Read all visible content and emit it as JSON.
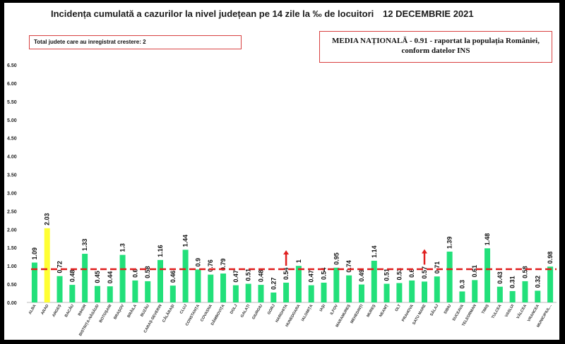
{
  "header": {
    "title": "Incidența cumulată a cazurilor la nivel județean pe 14 zile la ‰ de locuitori",
    "date": "12 DECEMBRIE 2021"
  },
  "info_left": "Total judete care au inregistrat crestere: 2",
  "info_right": "MEDIA NAȚIONALĂ - 0.91 - raportat la populația României, conform datelor INS",
  "chart_data": {
    "type": "bar",
    "title": "Incidența cumulată a cazurilor la nivel județean pe 14 zile la ‰ de locuitori",
    "xlabel": "",
    "ylabel": "",
    "ylim": [
      0,
      6.5
    ],
    "yticks": [
      0.0,
      0.5,
      1.0,
      1.5,
      2.0,
      2.5,
      3.0,
      3.5,
      4.0,
      4.5,
      5.0,
      5.5,
      6.0,
      6.5
    ],
    "ytick_labels": [
      "0.00",
      "0.50",
      "1.00",
      "1.50",
      "2.00",
      "2.50",
      "3.00",
      "3.50",
      "4.00",
      "4.50",
      "5.00",
      "5.50",
      "6.00",
      "6.50"
    ],
    "grid": false,
    "categories": [
      "ALBA",
      "ARAD",
      "ARGEȘ",
      "BACĂU",
      "BIHOR",
      "BISTRIȚA-NĂSĂUD",
      "BOTOȘANI",
      "BRAȘOV",
      "BRĂILA",
      "BUZĂU",
      "CARAȘ-SEVERIN",
      "CĂLĂRAȘI",
      "CLUJ",
      "CONSTANȚA",
      "COVASNA",
      "DÂMBOVIȚA",
      "DOLJ",
      "GALAȚI",
      "GIURGIU",
      "GORJ",
      "HARGHITA",
      "HUNEDOARA",
      "IALOMIȚA",
      "IAȘI",
      "ILFOV",
      "MARAMUREȘ",
      "MEHEDINȚI",
      "MUREȘ",
      "NEAMȚ",
      "OLT",
      "PRAHOVA",
      "SATU MARE",
      "SĂLAJ",
      "SIBIU",
      "SUCEAVA",
      "TELEORMAN",
      "TIMIȘ",
      "TULCEA",
      "VASLUI",
      "VÂLCEA",
      "VRANCEA",
      "MUNICIPIUL..."
    ],
    "values": [
      1.09,
      2.03,
      0.72,
      0.48,
      1.33,
      0.45,
      0.44,
      1.3,
      0.6,
      0.58,
      1.16,
      0.46,
      1.44,
      0.9,
      0.76,
      0.79,
      0.47,
      0.51,
      0.48,
      0.27,
      0.54,
      1,
      0.47,
      0.54,
      0.95,
      0.74,
      0.49,
      1.14,
      0.51,
      0.53,
      0.6,
      0.57,
      0.71,
      1.39,
      0.3,
      0.61,
      1.48,
      0.43,
      0.31,
      0.58,
      0.32,
      0.98
    ],
    "value_labels": [
      "1.09",
      "2.03",
      "0.72",
      "0.48",
      "1.33",
      "0.45",
      "0.44",
      "1.3",
      "0.6",
      "0.58",
      "1.16",
      "0.46",
      "1.44",
      "0.9",
      "0.76",
      "0.79",
      "0.47",
      "0.51",
      "0.48",
      "0.27",
      "0.54",
      "1",
      "0.47",
      "0.54",
      "0.95",
      "0.74",
      "0.49",
      "1.14",
      "0.51",
      "0.53",
      "0.6",
      "0.57",
      "0.71",
      "1.39",
      "0.3",
      "0.61",
      "1.48",
      "0.43",
      "0.31",
      "0.58",
      "0.32",
      "0.98"
    ],
    "highlight_category": "ARAD",
    "increase_categories": [
      "HARGHITA",
      "SATU MARE"
    ],
    "reference_line": {
      "value": 0.91
    },
    "colors": {
      "bar": "#22e07a",
      "highlight": "#ffff33",
      "reference": "#e02020",
      "arrow": "#e02020"
    }
  }
}
